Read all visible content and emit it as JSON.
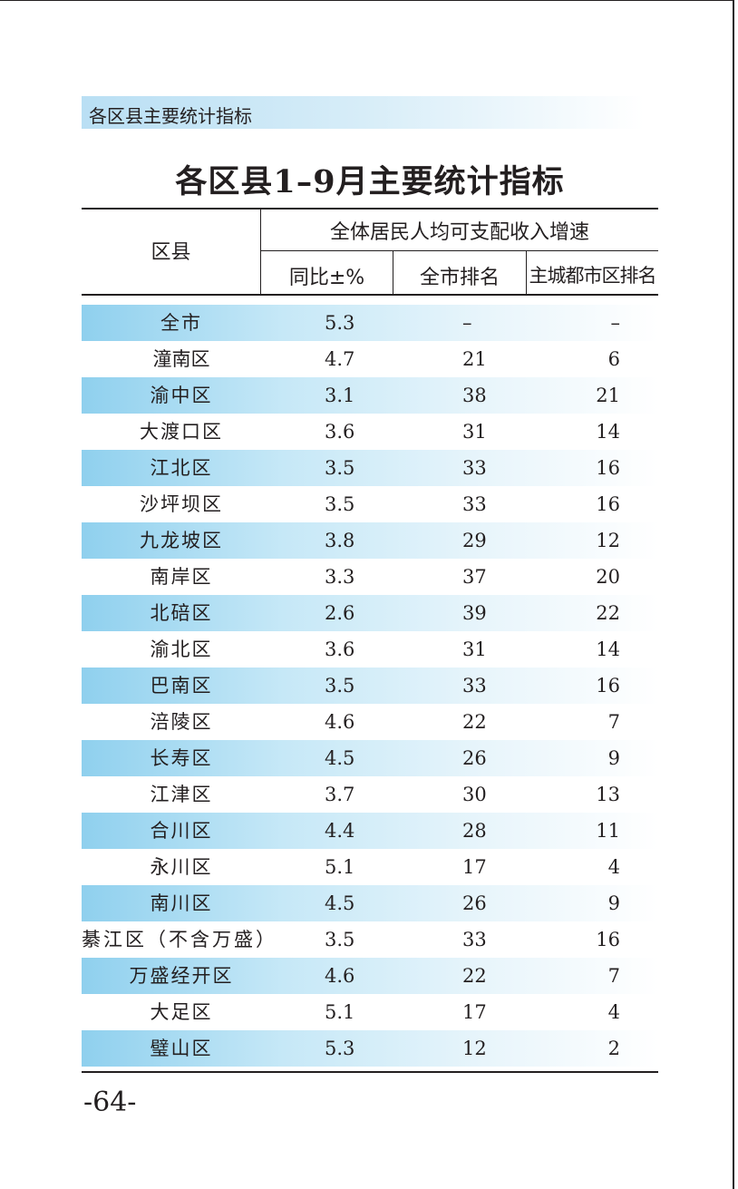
{
  "section_header": "各区县主要统计指标",
  "title": "各区县1–9月主要统计指标",
  "table": {
    "col_district": "区县",
    "group_header": "全体居民人均可支配收入增速",
    "col_yoy": "同比±%",
    "col_city_rank": "全市排名",
    "col_main_rank": "主城都市区排名",
    "rows": [
      {
        "name": "全市",
        "yoy": "5.3",
        "city_rank": "–",
        "main_rank": "–"
      },
      {
        "name": "潼南区",
        "yoy": "4.7",
        "city_rank": "21",
        "main_rank": "6"
      },
      {
        "name": "渝中区",
        "yoy": "3.1",
        "city_rank": "38",
        "main_rank": "21"
      },
      {
        "name": "大渡口区",
        "yoy": "3.6",
        "city_rank": "31",
        "main_rank": "14"
      },
      {
        "name": "江北区",
        "yoy": "3.5",
        "city_rank": "33",
        "main_rank": "16"
      },
      {
        "name": "沙坪坝区",
        "yoy": "3.5",
        "city_rank": "33",
        "main_rank": "16"
      },
      {
        "name": "九龙坡区",
        "yoy": "3.8",
        "city_rank": "29",
        "main_rank": "12"
      },
      {
        "name": "南岸区",
        "yoy": "3.3",
        "city_rank": "37",
        "main_rank": "20"
      },
      {
        "name": "北碚区",
        "yoy": "2.6",
        "city_rank": "39",
        "main_rank": "22"
      },
      {
        "name": "渝北区",
        "yoy": "3.6",
        "city_rank": "31",
        "main_rank": "14"
      },
      {
        "name": "巴南区",
        "yoy": "3.5",
        "city_rank": "33",
        "main_rank": "16"
      },
      {
        "name": "涪陵区",
        "yoy": "4.6",
        "city_rank": "22",
        "main_rank": "7"
      },
      {
        "name": "长寿区",
        "yoy": "4.5",
        "city_rank": "26",
        "main_rank": "9"
      },
      {
        "name": "江津区",
        "yoy": "3.7",
        "city_rank": "30",
        "main_rank": "13"
      },
      {
        "name": "合川区",
        "yoy": "4.4",
        "city_rank": "28",
        "main_rank": "11"
      },
      {
        "name": "永川区",
        "yoy": "5.1",
        "city_rank": "17",
        "main_rank": "4"
      },
      {
        "name": "南川区",
        "yoy": "4.5",
        "city_rank": "26",
        "main_rank": "9"
      },
      {
        "name": "綦江区（不含万盛）",
        "yoy": "3.5",
        "city_rank": "33",
        "main_rank": "16"
      },
      {
        "name": "万盛经开区",
        "yoy": "4.6",
        "city_rank": "22",
        "main_rank": "7"
      },
      {
        "name": "大足区",
        "yoy": "5.1",
        "city_rank": "17",
        "main_rank": "4"
      },
      {
        "name": "璧山区",
        "yoy": "5.3",
        "city_rank": "12",
        "main_rank": "2"
      }
    ]
  },
  "page_number": "-64-"
}
